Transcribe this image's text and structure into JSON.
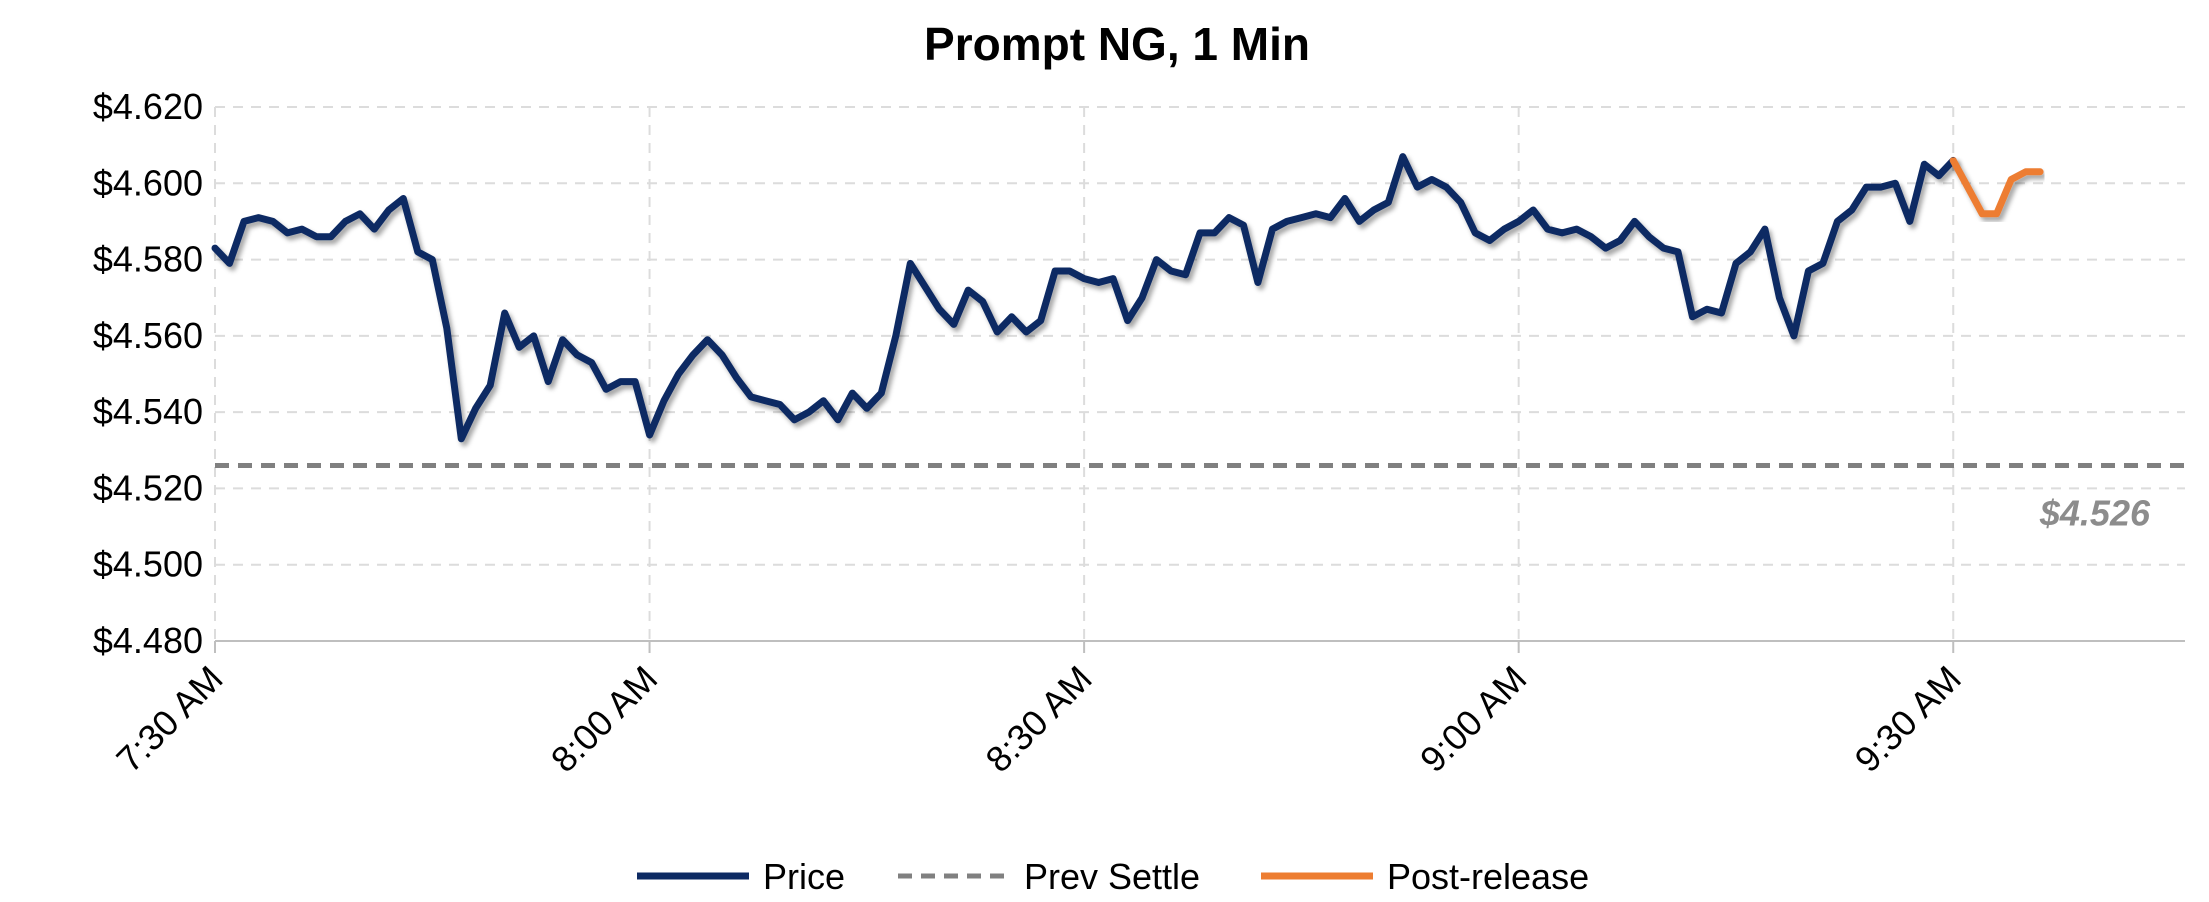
{
  "chart_data": {
    "type": "line",
    "title": "Prompt NG, 1 Min",
    "xlabel": "",
    "ylabel": "",
    "x_ticks": [
      "7:30 AM",
      "8:00 AM",
      "8:30 AM",
      "9:00 AM",
      "9:30 AM"
    ],
    "x_tick_minutes": [
      0,
      30,
      60,
      90,
      120
    ],
    "xlim_minutes": [
      0,
      136
    ],
    "y_ticks": [
      "$4.480",
      "$4.500",
      "$4.520",
      "$4.540",
      "$4.560",
      "$4.580",
      "$4.600",
      "$4.620"
    ],
    "ylim": [
      4.48,
      4.62
    ],
    "grid": true,
    "legend_position": "bottom",
    "series": [
      {
        "name": "Price",
        "color": "#0d2a63",
        "style": "solid",
        "x_minutes": [
          0,
          1,
          2,
          3,
          4,
          5,
          6,
          7,
          8,
          9,
          10,
          11,
          12,
          13,
          14,
          15,
          16,
          17,
          18,
          19,
          20,
          21,
          22,
          23,
          24,
          25,
          26,
          27,
          28,
          29,
          30,
          31,
          32,
          33,
          34,
          35,
          36,
          37,
          38,
          39,
          40,
          41,
          42,
          43,
          44,
          45,
          46,
          47,
          48,
          49,
          50,
          51,
          52,
          53,
          54,
          55,
          56,
          57,
          58,
          59,
          60,
          61,
          62,
          63,
          64,
          65,
          66,
          67,
          68,
          69,
          70,
          71,
          72,
          73,
          74,
          75,
          76,
          77,
          78,
          79,
          80,
          81,
          82,
          83,
          84,
          85,
          86,
          87,
          88,
          89,
          90,
          91,
          92,
          93,
          94,
          95,
          96,
          97,
          98,
          99,
          100,
          101,
          102,
          103,
          104,
          105,
          106,
          107,
          108,
          109,
          110,
          111,
          112,
          113,
          114,
          115,
          116,
          117,
          118,
          119,
          120
        ],
        "values": [
          4.583,
          4.579,
          4.59,
          4.591,
          4.59,
          4.587,
          4.588,
          4.586,
          4.586,
          4.59,
          4.592,
          4.588,
          4.593,
          4.596,
          4.582,
          4.58,
          4.562,
          4.533,
          4.541,
          4.547,
          4.566,
          4.557,
          4.56,
          4.548,
          4.559,
          4.555,
          4.553,
          4.546,
          4.548,
          4.548,
          4.534,
          4.543,
          4.55,
          4.555,
          4.559,
          4.555,
          4.549,
          4.544,
          4.543,
          4.542,
          4.538,
          4.54,
          4.543,
          4.538,
          4.545,
          4.541,
          4.545,
          4.56,
          4.579,
          4.573,
          4.567,
          4.563,
          4.572,
          4.569,
          4.561,
          4.565,
          4.561,
          4.564,
          4.577,
          4.577,
          4.575,
          4.574,
          4.575,
          4.564,
          4.57,
          4.58,
          4.577,
          4.576,
          4.587,
          4.587,
          4.591,
          4.589,
          4.574,
          4.588,
          4.59,
          4.591,
          4.592,
          4.591,
          4.596,
          4.59,
          4.593,
          4.595,
          4.607,
          4.599,
          4.601,
          4.599,
          4.595,
          4.587,
          4.585,
          4.588,
          4.59,
          4.593,
          4.588,
          4.587,
          4.588,
          4.586,
          4.583,
          4.585,
          4.59,
          4.586,
          4.583,
          4.582,
          4.565,
          4.567,
          4.566,
          4.579,
          4.582,
          4.588,
          4.57,
          4.56,
          4.577,
          4.579,
          4.59,
          4.593,
          4.599,
          4.599,
          4.6,
          4.59,
          4.605,
          4.602,
          4.606
        ]
      },
      {
        "name": "Prev Settle",
        "color": "#808080",
        "style": "dashed",
        "x_minutes": [
          0,
          136
        ],
        "values": [
          4.526,
          4.526
        ]
      },
      {
        "name": "Post-release",
        "color": "#ed7d31",
        "style": "solid",
        "x_minutes": [
          120,
          121,
          122,
          123,
          124,
          125,
          126
        ],
        "values": [
          4.606,
          4.599,
          4.592,
          4.592,
          4.601,
          4.603,
          4.603
        ]
      }
    ],
    "annotations": [
      {
        "text": "$4.526",
        "series": "Prev Settle"
      }
    ]
  }
}
